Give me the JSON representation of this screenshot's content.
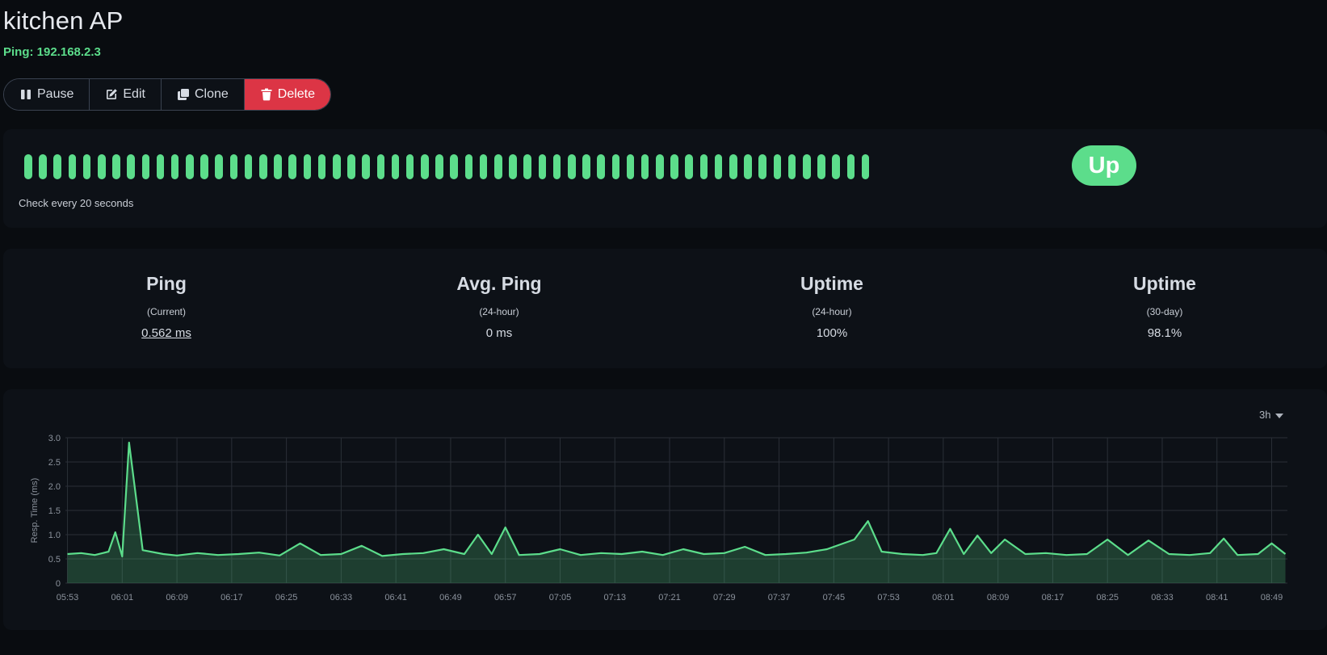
{
  "monitor": {
    "name": "kitchen AP",
    "subtitle": "Ping: 192.168.2.3"
  },
  "actions": {
    "pause": "Pause",
    "edit": "Edit",
    "clone": "Clone",
    "delete": "Delete"
  },
  "heartbeat": {
    "beat_count": 58,
    "check_text": "Check every 20 seconds",
    "status": "Up",
    "status_color": "#5cdd8b"
  },
  "stats": [
    {
      "title": "Ping",
      "sub": "(Current)",
      "value": "0.562 ms"
    },
    {
      "title": "Avg. Ping",
      "sub": "(24-hour)",
      "value": "0 ms"
    },
    {
      "title": "Uptime",
      "sub": "(24-hour)",
      "value": "100%"
    },
    {
      "title": "Uptime",
      "sub": "(30-day)",
      "value": "98.1%"
    }
  ],
  "chart_period": "3h",
  "colors": {
    "accent": "#5cdd8b",
    "danger": "#dc3545",
    "background": "#090c10",
    "card": "#0d1117"
  },
  "chart_data": {
    "type": "area",
    "ylabel": "Resp. Time (ms)",
    "ylim": [
      0,
      3.0
    ],
    "y_ticks": [
      "0",
      "0.5",
      "1.0",
      "1.5",
      "2.0",
      "2.5",
      "3.0"
    ],
    "x_ticks": [
      "05:53",
      "06:01",
      "06:09",
      "06:17",
      "06:25",
      "06:33",
      "06:41",
      "06:49",
      "06:57",
      "07:05",
      "07:13",
      "07:21",
      "07:29",
      "07:37",
      "07:45",
      "07:53",
      "08:01",
      "08:09",
      "08:17",
      "08:25",
      "08:33",
      "08:41",
      "08:49"
    ],
    "grid": true,
    "series": [
      {
        "color": "#5cdd8b",
        "x": [
          "05:53",
          "05:55",
          "05:57",
          "05:59",
          "06:00",
          "06:01",
          "06:02",
          "06:04",
          "06:07",
          "06:09",
          "06:12",
          "06:15",
          "06:18",
          "06:21",
          "06:24",
          "06:27",
          "06:30",
          "06:33",
          "06:36",
          "06:39",
          "06:42",
          "06:45",
          "06:48",
          "06:51",
          "06:53",
          "06:55",
          "06:57",
          "06:59",
          "07:02",
          "07:05",
          "07:08",
          "07:11",
          "07:14",
          "07:17",
          "07:20",
          "07:23",
          "07:26",
          "07:29",
          "07:32",
          "07:35",
          "07:38",
          "07:41",
          "07:44",
          "07:46",
          "07:48",
          "07:50",
          "07:52",
          "07:55",
          "07:58",
          "08:00",
          "08:02",
          "08:04",
          "08:06",
          "08:08",
          "08:10",
          "08:13",
          "08:16",
          "08:19",
          "08:22",
          "08:25",
          "08:28",
          "08:31",
          "08:34",
          "08:37",
          "08:40",
          "08:42",
          "08:44",
          "08:47",
          "08:49",
          "08:51"
        ],
        "y": [
          0.6,
          0.62,
          0.58,
          0.65,
          1.05,
          0.55,
          2.9,
          0.68,
          0.6,
          0.57,
          0.62,
          0.58,
          0.6,
          0.63,
          0.57,
          0.82,
          0.58,
          0.6,
          0.77,
          0.56,
          0.6,
          0.62,
          0.7,
          0.6,
          1.0,
          0.6,
          1.15,
          0.58,
          0.6,
          0.7,
          0.58,
          0.62,
          0.6,
          0.65,
          0.58,
          0.7,
          0.6,
          0.62,
          0.75,
          0.58,
          0.6,
          0.63,
          0.7,
          0.8,
          0.9,
          1.28,
          0.65,
          0.6,
          0.58,
          0.62,
          1.12,
          0.6,
          0.98,
          0.62,
          0.9,
          0.6,
          0.62,
          0.58,
          0.6,
          0.9,
          0.58,
          0.88,
          0.6,
          0.58,
          0.62,
          0.92,
          0.58,
          0.6,
          0.82,
          0.6
        ]
      }
    ]
  }
}
